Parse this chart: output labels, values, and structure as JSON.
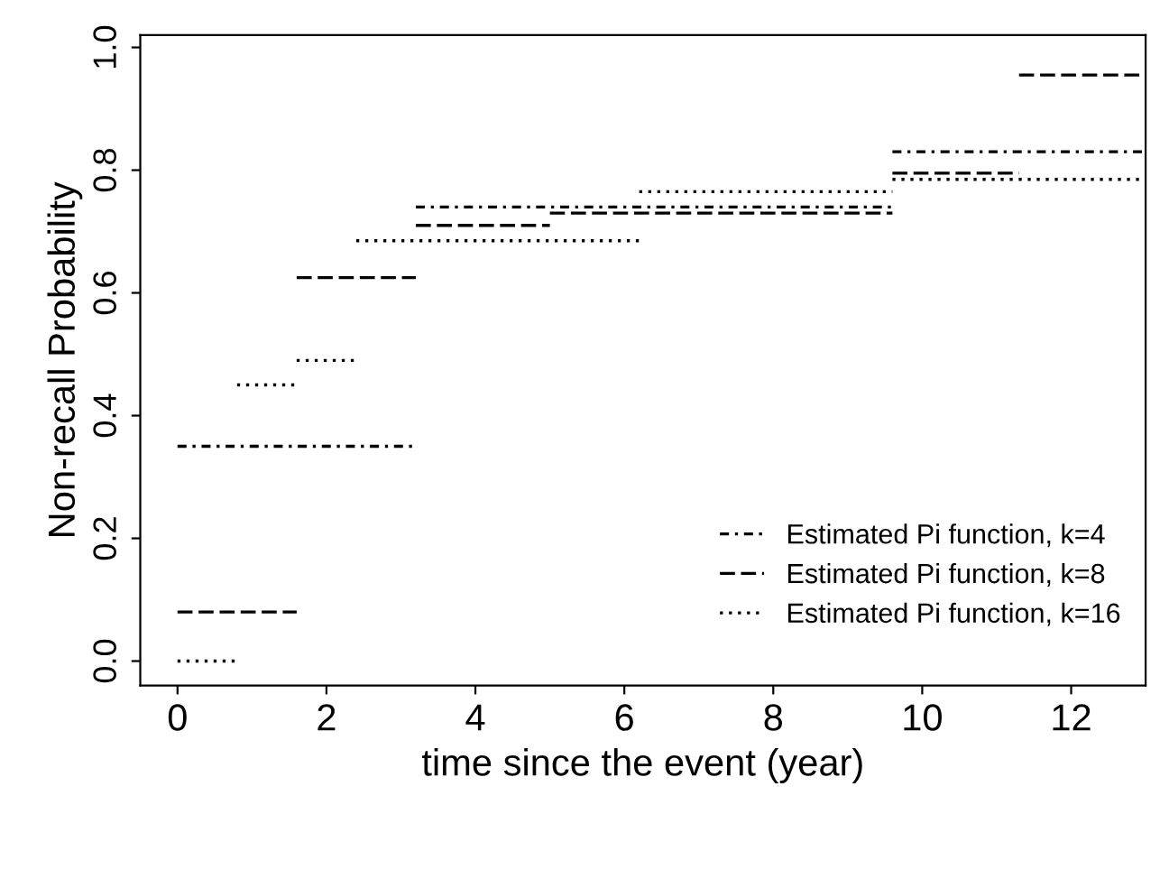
{
  "chart_data": {
    "type": "step",
    "xlabel": "time since the event (year)",
    "ylabel": "Non-recall Probability",
    "xlim": [
      -0.5,
      13
    ],
    "ylim": [
      -0.04,
      1.02
    ],
    "xticks": [
      0,
      2,
      4,
      6,
      8,
      10,
      12
    ],
    "yticks": [
      {
        "value": 0,
        "label": "0.0"
      },
      {
        "value": 0.2,
        "label": "0.2"
      },
      {
        "value": 0.4,
        "label": "0.4"
      },
      {
        "value": 0.6,
        "label": "0.6"
      },
      {
        "value": 0.8,
        "label": "0.8"
      },
      {
        "value": 1,
        "label": "1.0"
      }
    ],
    "grid": false,
    "legend": "bottom right",
    "series": [
      {
        "name": "Estimated Pi function, k=4",
        "color": "#000000",
        "line_style": "dashdot",
        "x": [
          0,
          3.2,
          9.6,
          13
        ],
        "values": [
          0.35,
          0.74,
          0.83,
          0.83
        ]
      },
      {
        "name": "Estimated Pi function, k=8",
        "color": "#000000",
        "line_style": "dashed",
        "x": [
          0,
          1.6,
          3.2,
          5,
          9.6,
          11.3,
          13
        ],
        "values": [
          0.08,
          0.625,
          0.71,
          0.73,
          0.795,
          0.955,
          0.955
        ]
      },
      {
        "name": "Estimated Pi function, k=16",
        "color": "#000000",
        "line_style": "dotted",
        "x": [
          0,
          0.8,
          1.6,
          2.4,
          6.2,
          9.6,
          13
        ],
        "values": [
          0,
          0.45,
          0.49,
          0.685,
          0.765,
          0.785,
          0.785
        ]
      }
    ]
  }
}
